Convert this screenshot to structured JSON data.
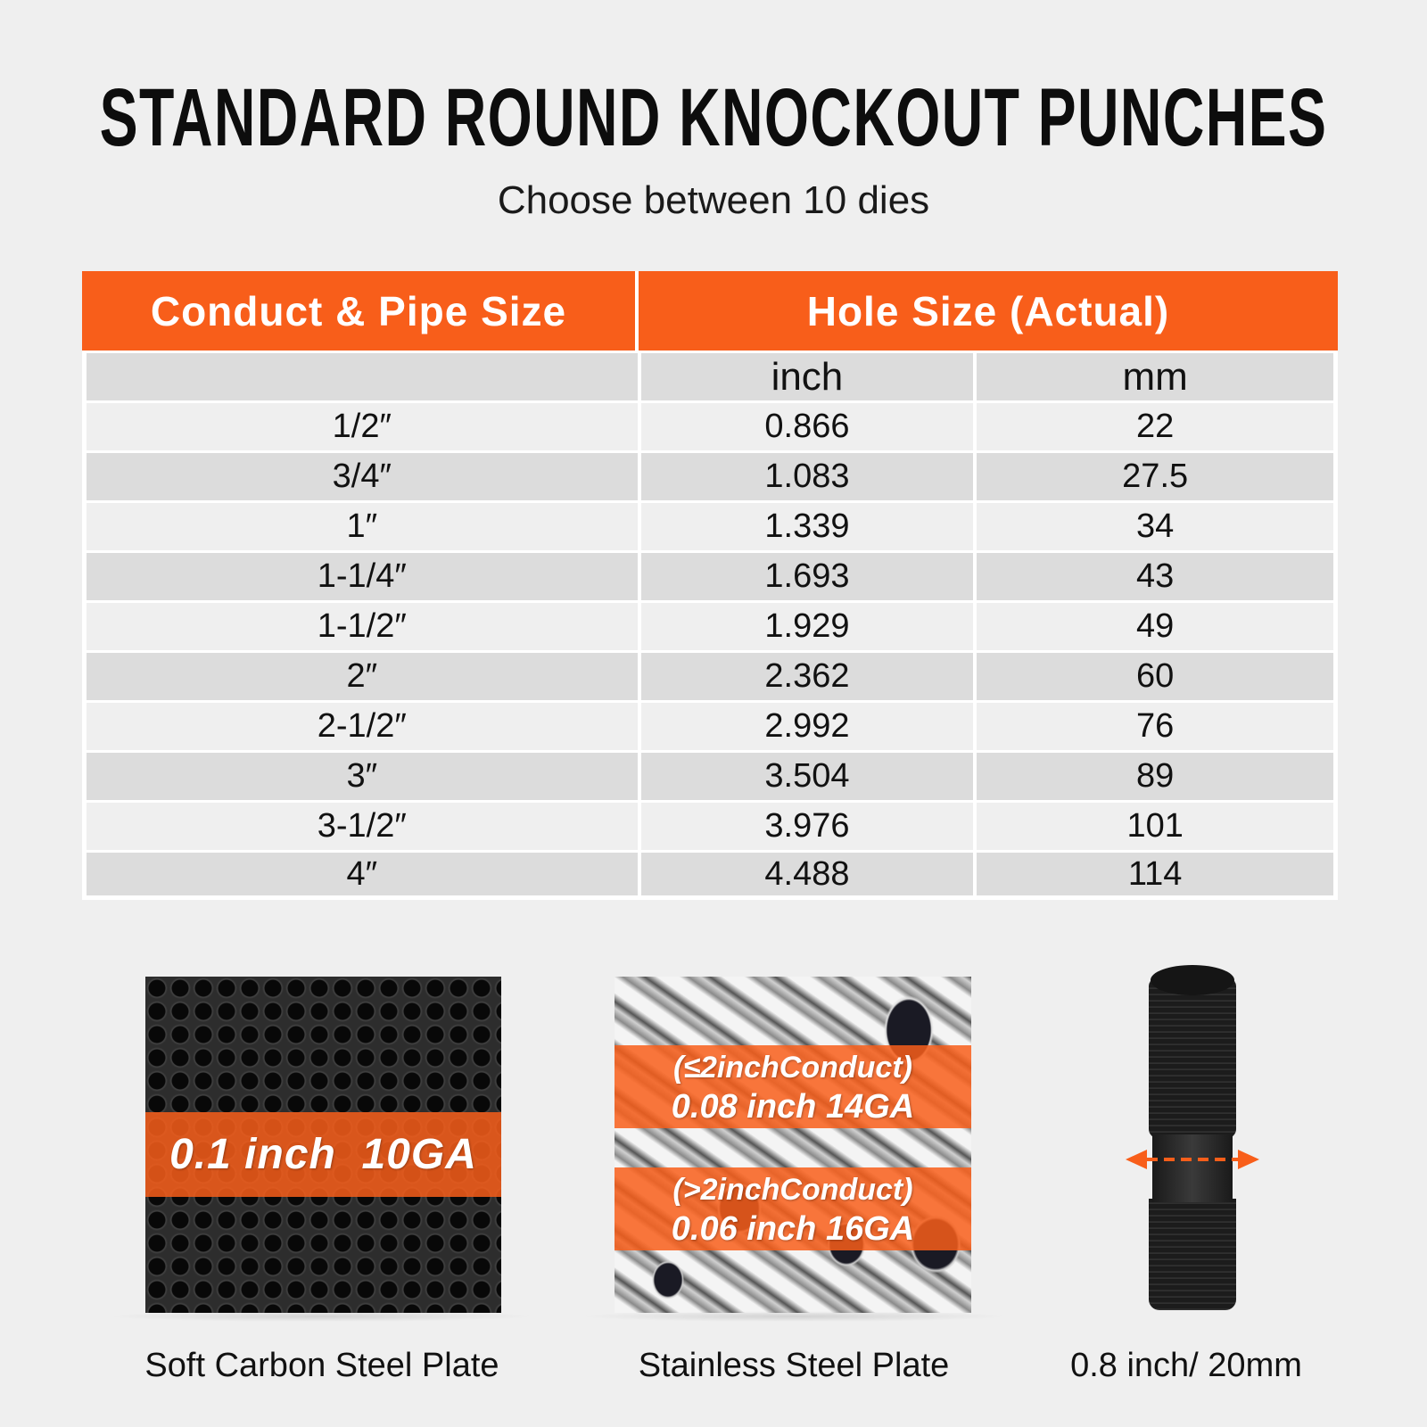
{
  "header": {
    "title": "STANDARD ROUND KNOCKOUT PUNCHES",
    "subtitle": "Choose between 10 dies"
  },
  "table": {
    "headers": [
      "Conduct & Pipe Size",
      "Hole Size (Actual)"
    ],
    "subheaders": [
      "",
      "inch",
      "mm"
    ],
    "rows": [
      [
        "1/2″",
        "0.866",
        "22"
      ],
      [
        "3/4″",
        "1.083",
        "27.5"
      ],
      [
        "1″",
        "1.339",
        "34"
      ],
      [
        "1-1/4″",
        "1.693",
        "43"
      ],
      [
        "1-1/2″",
        "1.929",
        "49"
      ],
      [
        "2″",
        "2.362",
        "60"
      ],
      [
        "2-1/2″",
        "2.992",
        "76"
      ],
      [
        "3″",
        "3.504",
        "89"
      ],
      [
        "3-1/2″",
        "3.976",
        "101"
      ],
      [
        "4″",
        "4.488",
        "114"
      ]
    ]
  },
  "materials": [
    {
      "caption": "Soft Carbon Steel Plate",
      "band": "0.1 inch  10GA"
    },
    {
      "caption": "Stainless Steel Plate",
      "band1_line1": "(≤2inchConduct)",
      "band1_line2": "0.08 inch 14GA",
      "band2_line1": "(>2inchConduct)",
      "band2_line2": "0.06 inch 16GA"
    },
    {
      "caption": "0.8 inch/ 20mm"
    }
  ],
  "colors": {
    "accent": "#f85e1a",
    "background": "#efefef",
    "row_alt": "#dcdcdc"
  }
}
